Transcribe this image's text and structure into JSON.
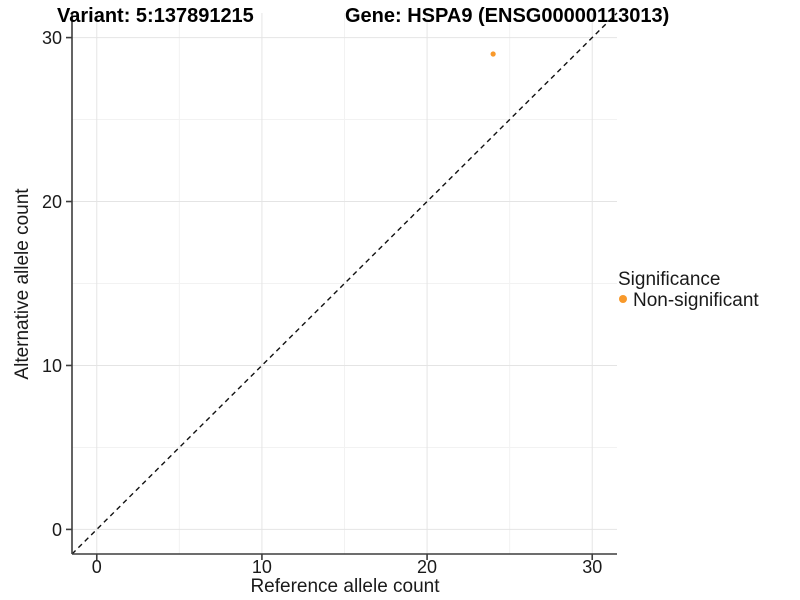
{
  "figure": {
    "title_left": "Variant: 5:137891215",
    "title_right": "Gene: HSPA9 (ENSG00000113013)",
    "x_axis_label": "Reference allele count",
    "y_axis_label": "Alternative allele count",
    "legend": {
      "title": "Significance",
      "items": [
        {
          "label": "Non-significant",
          "color": "#F8992B"
        }
      ]
    }
  },
  "chart_data": {
    "type": "scatter",
    "title": "Variant: 5:137891215 — Gene: HSPA9 (ENSG00000113013)",
    "xlabel": "Reference allele count",
    "ylabel": "Alternative allele count",
    "xlim": [
      -1.5,
      31.5
    ],
    "ylim": [
      -1.5,
      31.5
    ],
    "x_ticks": [
      0,
      10,
      20,
      30
    ],
    "y_ticks": [
      0,
      10,
      20,
      30
    ],
    "x_minor_ticks": [
      5,
      15,
      25
    ],
    "y_minor_ticks": [
      5,
      15,
      25
    ],
    "grid": true,
    "legend_position": "right",
    "legend_title": "Significance",
    "series": [
      {
        "name": "Non-significant",
        "color": "#F8992B",
        "points": [
          {
            "x": 24,
            "y": 29
          }
        ]
      }
    ],
    "identity_line": {
      "style": "dashed",
      "from": [
        -1.5,
        -1.5
      ],
      "to": [
        31.5,
        31.5
      ]
    }
  },
  "colors": {
    "background": "#ffffff",
    "major_grid": "#e4e4e4",
    "minor_grid": "#f2f2f2",
    "axis_line": "#3d3d3d",
    "tick_mark": "#3d3d3d",
    "dashed_line": "#111111",
    "point": "#F8992B"
  }
}
